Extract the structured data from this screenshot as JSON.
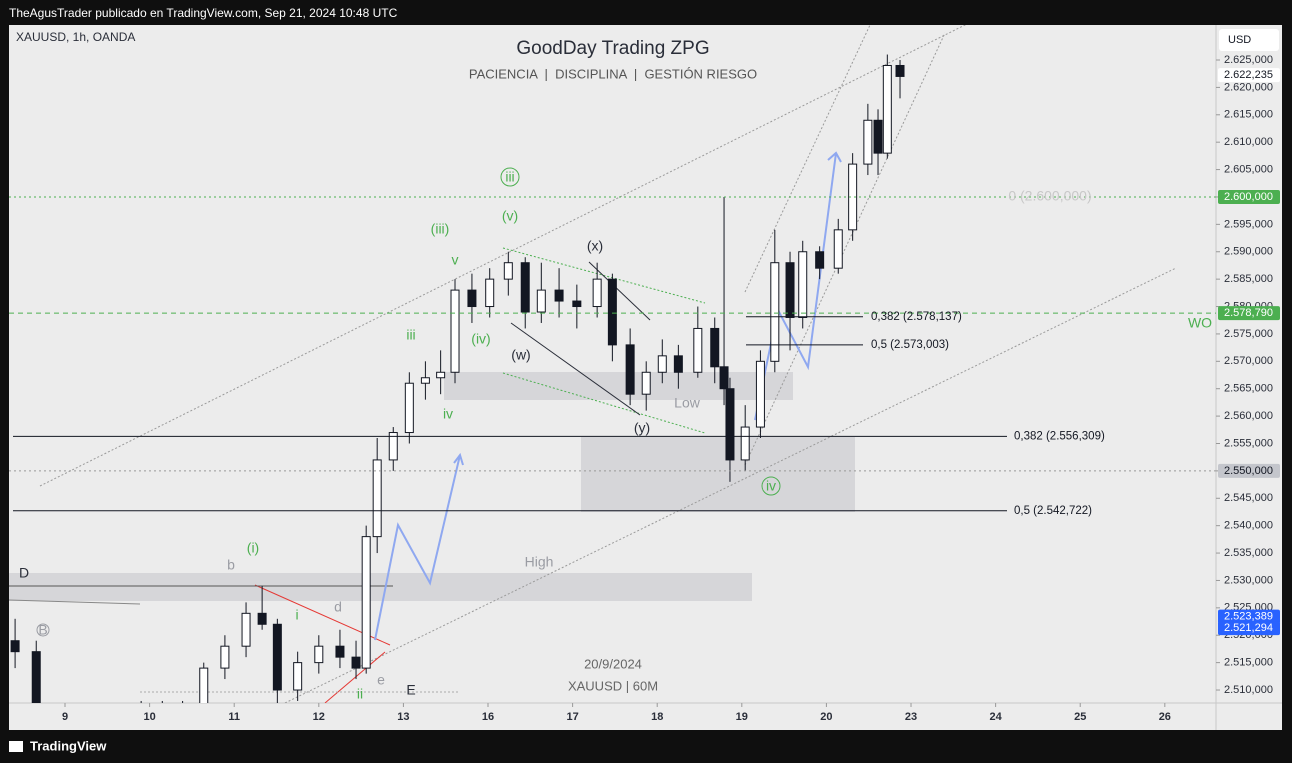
{
  "header": "TheAgusTrader publicado en TradingView.com, Sep 21, 2024 10:48 UTC",
  "footer": "TradingView",
  "chart_data": {
    "type": "candlestick",
    "title": "GoodDay Trading ZPG",
    "subtitle": "PACIENCIA  |  DISCIPLINA  |  GESTIÓN RIESGO",
    "symbol": "XAUUSD, 1h, OANDA",
    "currency": "USD",
    "watermark": [
      "20/9/2024",
      "XAUUSD | 60M"
    ],
    "up_color": "#ffffff",
    "down_color": "#131722",
    "x": [
      -0.59,
      -0.34,
      -0.09,
      0.15,
      0.4,
      0.65,
      0.9,
      1.15,
      1.39,
      1.64,
      1.89,
      2.14,
      2.33,
      2.51,
      2.75,
      3.0,
      3.25,
      3.44,
      3.56,
      3.69,
      3.88,
      4.07,
      4.26,
      4.44,
      4.61,
      4.81,
      5.02,
      5.24,
      5.44,
      5.63,
      5.84,
      6.05,
      6.29,
      6.47,
      6.68,
      6.87,
      7.06,
      7.25,
      7.48,
      7.68,
      7.79,
      7.86,
      8.04,
      8.22,
      8.39,
      8.57,
      8.72,
      8.92,
      9.14,
      9.31,
      9.49,
      9.61,
      9.72,
      9.87
    ],
    "open": [
      2519,
      2517,
      2505,
      2503,
      2504,
      2503,
      2505,
      2506,
      2505,
      2507,
      2514,
      2518,
      2524,
      2522,
      2510,
      2515,
      2518,
      2516,
      2514,
      2538,
      2552,
      2557,
      2566,
      2567,
      2568,
      2583,
      2580,
      2585,
      2588,
      2579,
      2583,
      2581,
      2580,
      2585,
      2573,
      2564,
      2568,
      2571,
      2568,
      2576,
      2569,
      2565,
      2552,
      2558,
      2570,
      2588,
      2578,
      2590,
      2587,
      2594,
      2606,
      2614,
      2608,
      2624
    ],
    "high": [
      2523,
      2519,
      2507,
      2506,
      2506,
      2506,
      2508,
      2508,
      2508,
      2515,
      2520,
      2526,
      2529,
      2523,
      2517,
      2520,
      2521,
      2519,
      2540,
      2556,
      2558,
      2568,
      2570,
      2572,
      2585,
      2586,
      2587,
      2590,
      2589,
      2588,
      2587,
      2584,
      2588,
      2586,
      2576,
      2570,
      2574,
      2573,
      2580,
      2578,
      2600,
      2567,
      2562,
      2572,
      2594,
      2590,
      2592,
      2591,
      2596,
      2608,
      2617,
      2616,
      2626,
      2625
    ],
    "low": [
      2514,
      2503,
      2500,
      2500,
      2501,
      2501,
      2503,
      2503,
      2502,
      2506,
      2512,
      2516,
      2521,
      2507,
      2508,
      2513,
      2514,
      2512,
      2513,
      2535,
      2550,
      2555,
      2563,
      2564,
      2566,
      2577,
      2578,
      2582,
      2576,
      2577,
      2578,
      2576,
      2578,
      2570,
      2562,
      2561,
      2566,
      2565,
      2567,
      2566,
      2562,
      2548,
      2550,
      2556,
      2568,
      2572,
      2576,
      2585,
      2586,
      2592,
      2604,
      2604,
      2607,
      2618
    ],
    "close": [
      2517,
      2505,
      2503,
      2504,
      2503,
      2505,
      2506,
      2505,
      2507,
      2514,
      2518,
      2524,
      2522,
      2510,
      2515,
      2518,
      2516,
      2514,
      2538,
      2552,
      2557,
      2566,
      2567,
      2568,
      2583,
      2580,
      2585,
      2588,
      2579,
      2583,
      2581,
      2580,
      2585,
      2573,
      2564,
      2568,
      2571,
      2568,
      2576,
      2569,
      2565,
      2552,
      2558,
      2570,
      2588,
      2578,
      2590,
      2587,
      2594,
      2606,
      2614,
      2608,
      2624,
      2622
    ],
    "xlim": [
      -0.662,
      13.605
    ],
    "xticks": [
      {
        "value": 0,
        "label": "9"
      },
      {
        "value": 1,
        "label": "10"
      },
      {
        "value": 2,
        "label": "11"
      },
      {
        "value": 3,
        "label": "12"
      },
      {
        "value": 4,
        "label": "13"
      },
      {
        "value": 5,
        "label": "16"
      },
      {
        "value": 6,
        "label": "17"
      },
      {
        "value": 7,
        "label": "18"
      },
      {
        "value": 8,
        "label": "19"
      },
      {
        "value": 9,
        "label": "20"
      },
      {
        "value": 10,
        "label": "23"
      },
      {
        "value": 11,
        "label": "24"
      },
      {
        "value": 12,
        "label": "25"
      },
      {
        "value": 13,
        "label": "26"
      }
    ],
    "ylim": [
      2507.63,
      2631.39
    ],
    "yticks": [
      {
        "value": 2510,
        "label": "2.510,000"
      },
      {
        "value": 2515,
        "label": "2.515,000"
      },
      {
        "value": 2520,
        "label": "2.520,000"
      },
      {
        "value": 2525,
        "label": "2.525,000"
      },
      {
        "value": 2530,
        "label": "2.530,000"
      },
      {
        "value": 2535,
        "label": "2.535,000"
      },
      {
        "value": 2540,
        "label": "2.540,000"
      },
      {
        "value": 2545,
        "label": "2.545,000"
      },
      {
        "value": 2550,
        "label": "2.550,000"
      },
      {
        "value": 2555,
        "label": "2.555,000"
      },
      {
        "value": 2560,
        "label": "2.560,000"
      },
      {
        "value": 2565,
        "label": "2.565,000"
      },
      {
        "value": 2570,
        "label": "2.570,000"
      },
      {
        "value": 2575,
        "label": "2.575,000"
      },
      {
        "value": 2580,
        "label": "2.580,000"
      },
      {
        "value": 2585,
        "label": "2.585,000"
      },
      {
        "value": 2590,
        "label": "2.590,000"
      },
      {
        "value": 2595,
        "label": "2.595,000"
      },
      {
        "value": 2600,
        "label": "2.600,000"
      },
      {
        "value": 2605,
        "label": "2.605,000"
      },
      {
        "value": 2610,
        "label": "2.610,000"
      },
      {
        "value": 2615,
        "label": "2.615,000"
      },
      {
        "value": 2620,
        "label": "2.620,000"
      },
      {
        "value": 2625,
        "label": "2.625,000"
      }
    ],
    "levels": [
      {
        "value": 2556.309,
        "label": "0,382 (2.556,309)"
      },
      {
        "value": 2542.722,
        "label": "0,5 (2.542,722)"
      },
      {
        "value": 2578.137,
        "label": "0,382 (2.578,137)"
      },
      {
        "value": 2573.003,
        "label": "0,5 (2.573,003)"
      }
    ],
    "price_labels": [
      {
        "value": 2622.235,
        "label": "2.622,235",
        "color": "#ffffff"
      },
      {
        "value": 2600,
        "label": "2.600,000",
        "color": "#4caf50",
        "line": "dotted"
      },
      {
        "value": 2578.79,
        "label": "2.578,790",
        "color": "#4caf50",
        "line": "dashed"
      },
      {
        "value": 2550,
        "label": "2.550,000",
        "color": "#c4c6cc",
        "line": "dotted"
      },
      {
        "value": 2523.389,
        "label": "2.523,389",
        "color": "#2962ff"
      },
      {
        "value": 2521.294,
        "label": "2.521,294",
        "color": "#2962ff"
      }
    ],
    "annotations": [
      "D",
      "E",
      "(i)",
      "b",
      "i",
      "d",
      "ii",
      "e",
      "iii",
      "iv",
      "v",
      "(iii)",
      "(iv)",
      "(v)",
      "iii",
      "(w)",
      "(x)",
      "(y)",
      "Low",
      "High",
      "iv",
      "WO",
      "0 (2.600,000)",
      "B"
    ]
  }
}
